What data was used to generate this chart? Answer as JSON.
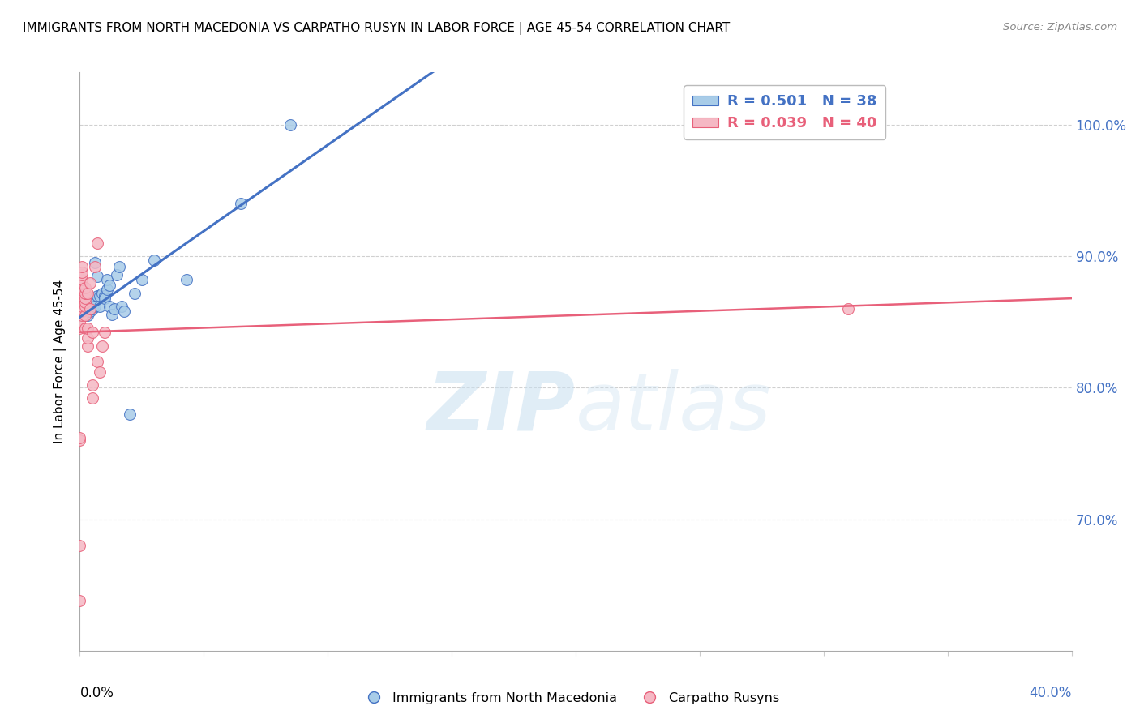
{
  "title": "IMMIGRANTS FROM NORTH MACEDONIA VS CARPATHO RUSYN IN LABOR FORCE | AGE 45-54 CORRELATION CHART",
  "source": "Source: ZipAtlas.com",
  "ylabel": "In Labor Force | Age 45-54",
  "y_tick_positions": [
    0.7,
    0.8,
    0.9,
    1.0
  ],
  "y_tick_labels": [
    "70.0%",
    "80.0%",
    "90.0%",
    "100.0%"
  ],
  "x_min": 0.0,
  "x_max": 0.4,
  "y_min": 0.6,
  "y_max": 1.04,
  "legend_r_blue": "R = 0.501",
  "legend_n_blue": "N = 38",
  "legend_r_pink": "R = 0.039",
  "legend_n_pink": "N = 40",
  "blue_color": "#a8cce8",
  "pink_color": "#f5b8c4",
  "blue_line_color": "#4472c4",
  "pink_line_color": "#e8607a",
  "watermark_color": "#c8dff0",
  "blue_scatter_x": [
    0.001,
    0.001,
    0.002,
    0.002,
    0.002,
    0.003,
    0.003,
    0.003,
    0.004,
    0.004,
    0.005,
    0.005,
    0.006,
    0.006,
    0.007,
    0.007,
    0.008,
    0.008,
    0.009,
    0.01,
    0.01,
    0.011,
    0.011,
    0.012,
    0.012,
    0.013,
    0.014,
    0.015,
    0.016,
    0.017,
    0.018,
    0.02,
    0.022,
    0.025,
    0.03,
    0.043,
    0.065,
    0.085
  ],
  "blue_scatter_y": [
    0.87,
    0.855,
    0.855,
    0.858,
    0.862,
    0.855,
    0.858,
    0.862,
    0.858,
    0.865,
    0.86,
    0.865,
    0.862,
    0.895,
    0.885,
    0.87,
    0.87,
    0.862,
    0.872,
    0.87,
    0.868,
    0.875,
    0.882,
    0.878,
    0.862,
    0.856,
    0.86,
    0.886,
    0.892,
    0.862,
    0.858,
    0.78,
    0.872,
    0.882,
    0.897,
    0.882,
    0.94,
    1.0
  ],
  "pink_scatter_x": [
    0.0,
    0.0,
    0.0,
    0.0,
    0.0,
    0.0,
    0.001,
    0.001,
    0.001,
    0.001,
    0.001,
    0.001,
    0.001,
    0.001,
    0.001,
    0.001,
    0.001,
    0.002,
    0.002,
    0.002,
    0.002,
    0.002,
    0.002,
    0.002,
    0.003,
    0.003,
    0.003,
    0.003,
    0.004,
    0.004,
    0.005,
    0.005,
    0.005,
    0.006,
    0.007,
    0.007,
    0.008,
    0.009,
    0.01,
    0.31
  ],
  "pink_scatter_y": [
    0.638,
    0.68,
    0.76,
    0.762,
    0.845,
    0.85,
    0.855,
    0.858,
    0.862,
    0.866,
    0.87,
    0.874,
    0.88,
    0.882,
    0.886,
    0.888,
    0.892,
    0.845,
    0.855,
    0.862,
    0.865,
    0.868,
    0.872,
    0.876,
    0.832,
    0.838,
    0.845,
    0.872,
    0.86,
    0.88,
    0.792,
    0.802,
    0.842,
    0.892,
    0.82,
    0.91,
    0.812,
    0.832,
    0.842,
    0.86
  ]
}
